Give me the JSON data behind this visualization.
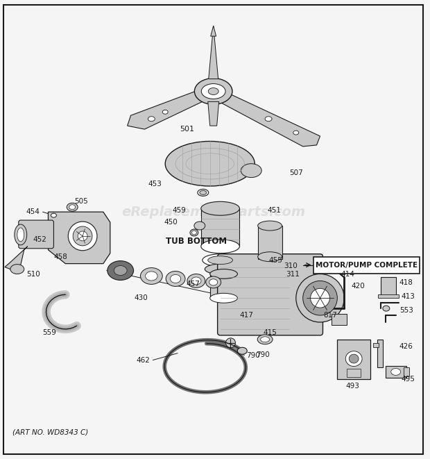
{
  "background_color": "#f5f5f5",
  "border_color": "#333333",
  "watermark_text": "eReplacementParts.com",
  "watermark_color": "#d0d0d0",
  "watermark_fontsize": 14,
  "art_no": "(ART NO. WD8343 C)",
  "label_box_text": "MOTOR/PUMP COMPLETE",
  "tub_bottom_text": "TUB BOTTOM",
  "fig_width": 6.2,
  "fig_height": 6.61,
  "dpi": 100,
  "gray_fill": "#c8c8c8",
  "dark_gray": "#707070",
  "mid_gray": "#a0a0a0",
  "line_color": "#1a1a1a",
  "white": "#ffffff"
}
